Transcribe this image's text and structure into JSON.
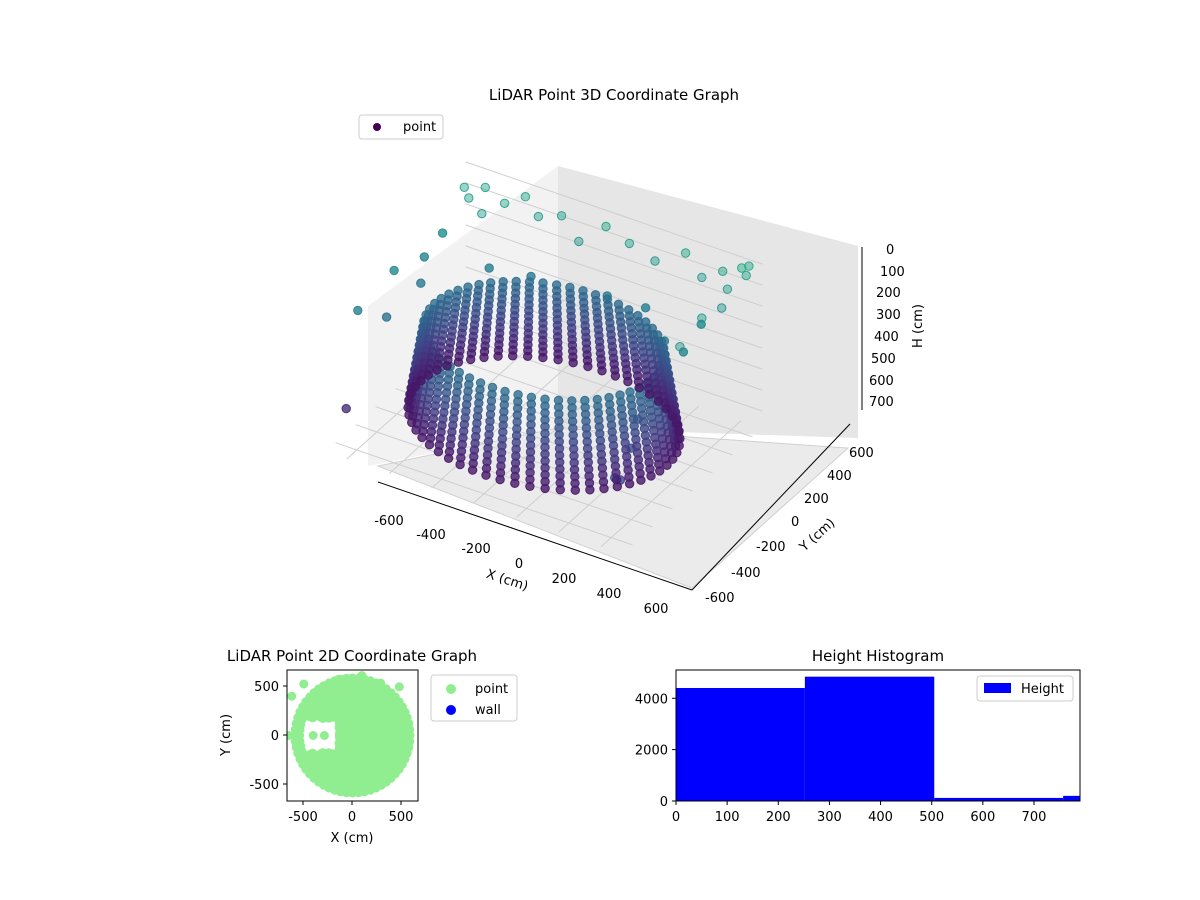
{
  "chart_data": [
    {
      "type": "scatter",
      "projection": "3d",
      "title": "LiDAR Point 3D Coordinate Graph",
      "xlabel": "X (cm)",
      "ylabel": "Y (cm)",
      "zlabel": "H (cm)",
      "xlim": [
        -700,
        700
      ],
      "ylim": [
        -700,
        700
      ],
      "zlim": [
        0,
        780
      ],
      "z_inverted": true,
      "x_ticks": [
        "-600",
        "-400",
        "-200",
        "0",
        "200",
        "400",
        "600"
      ],
      "y_ticks": [
        "-600",
        "-400",
        "-200",
        "0",
        "200",
        "400",
        "600"
      ],
      "z_ticks": [
        "0",
        "100",
        "200",
        "300",
        "400",
        "500",
        "600",
        "700"
      ],
      "legend": [
        "point"
      ],
      "legend_position": "upper-left",
      "grid": true,
      "colormap": "viridis",
      "series": [
        {
          "name": "point",
          "color": "#440154",
          "rings": [
            {
              "z": 700,
              "r": 580,
              "count": 56
            },
            {
              "z": 670,
              "r": 575,
              "count": 56
            },
            {
              "z": 640,
              "r": 570,
              "count": 56
            },
            {
              "z": 610,
              "r": 565,
              "count": 56
            },
            {
              "z": 580,
              "r": 560,
              "count": 56
            },
            {
              "z": 550,
              "r": 555,
              "count": 56
            },
            {
              "z": 520,
              "r": 550,
              "count": 56
            },
            {
              "z": 490,
              "r": 545,
              "count": 56
            },
            {
              "z": 460,
              "r": 540,
              "count": 56
            },
            {
              "z": 430,
              "r": 535,
              "count": 56
            },
            {
              "z": 400,
              "r": 530,
              "count": 56
            },
            {
              "z": 370,
              "r": 525,
              "count": 56
            },
            {
              "z": 340,
              "r": 520,
              "count": 56
            },
            {
              "z": 310,
              "r": 515,
              "count": 56
            }
          ],
          "scattered": [
            {
              "x": -640,
              "y": 560,
              "z": 40
            },
            {
              "x": -600,
              "y": 520,
              "z": 60
            },
            {
              "x": -560,
              "y": 600,
              "z": 30
            },
            {
              "x": -520,
              "y": 480,
              "z": 90
            },
            {
              "x": -450,
              "y": 560,
              "z": 50
            },
            {
              "x": -380,
              "y": 620,
              "z": 20
            },
            {
              "x": -300,
              "y": 580,
              "z": 70
            },
            {
              "x": -200,
              "y": 600,
              "z": 40
            },
            {
              "x": -100,
              "y": 560,
              "z": 110
            },
            {
              "x": 0,
              "y": 620,
              "z": 30
            },
            {
              "x": 120,
              "y": 600,
              "z": 60
            },
            {
              "x": 250,
              "y": 580,
              "z": 90
            },
            {
              "x": 380,
              "y": 610,
              "z": 20
            },
            {
              "x": 480,
              "y": 560,
              "z": 80
            },
            {
              "x": 560,
              "y": 600,
              "z": 40
            },
            {
              "x": 620,
              "y": 520,
              "z": 70
            },
            {
              "x": 640,
              "y": 420,
              "z": 110
            },
            {
              "x": 600,
              "y": 300,
              "z": 150
            },
            {
              "x": 650,
              "y": 200,
              "z": 60
            },
            {
              "x": 620,
              "y": 80,
              "z": 180
            },
            {
              "x": 660,
              "y": -40,
              "z": 90
            },
            {
              "x": 640,
              "y": -150,
              "z": 200
            },
            {
              "x": -620,
              "y": 300,
              "z": 140
            },
            {
              "x": -640,
              "y": 160,
              "z": 200
            },
            {
              "x": -600,
              "y": 40,
              "z": 260
            },
            {
              "x": -660,
              "y": -100,
              "z": 160
            },
            {
              "x": -620,
              "y": -260,
              "z": 300
            },
            {
              "x": -680,
              "y": -420,
              "z": 220
            },
            {
              "x": -400,
              "y": 300,
              "z": 230
            },
            {
              "x": -250,
              "y": 400,
              "z": 260
            },
            {
              "x": 100,
              "y": 420,
              "z": 240
            },
            {
              "x": 300,
              "y": 380,
              "z": 210
            },
            {
              "x": 450,
              "y": 250,
              "z": 260
            },
            {
              "x": 500,
              "y": 100,
              "z": 300
            },
            {
              "x": 560,
              "y": -250,
              "z": 380
            },
            {
              "x": 600,
              "y": -400,
              "z": 440
            },
            {
              "x": 620,
              "y": -550,
              "z": 520
            },
            {
              "x": -650,
              "y": -600,
              "z": 600
            },
            {
              "x": 640,
              "y": -650,
              "z": 460
            },
            {
              "x": 640,
              "y": 620,
              "z": 5
            },
            {
              "x": 680,
              "y": 580,
              "z": 10
            },
            {
              "x": 660,
              "y": 650,
              "z": 2
            }
          ]
        }
      ]
    },
    {
      "type": "scatter",
      "title": "LiDAR Point 2D Coordinate Graph",
      "xlabel": "X (cm)",
      "ylabel": "Y (cm)",
      "xlim": [
        -700,
        700
      ],
      "ylim": [
        -700,
        700
      ],
      "x_ticks": [
        "-500",
        "0",
        "500"
      ],
      "y_ticks": [
        "-500",
        "0",
        "500"
      ],
      "legend": [
        "point",
        "wall"
      ],
      "legend_position": "outside-right",
      "series": [
        {
          "name": "point",
          "color": "#90ee90"
        },
        {
          "name": "wall",
          "color": "#0000ff"
        }
      ]
    },
    {
      "type": "bar",
      "title": "Height Histogram",
      "xlim": [
        0,
        790
      ],
      "ylim": [
        0,
        5100
      ],
      "x_ticks": [
        "0",
        "100",
        "200",
        "300",
        "400",
        "500",
        "600",
        "700"
      ],
      "y_ticks": [
        "0",
        "2000",
        "4000"
      ],
      "legend": [
        "Height"
      ],
      "legend_position": "upper-right",
      "series": [
        {
          "name": "Height",
          "color": "#0000ff",
          "bins": [
            {
              "from": 0,
              "to": 252,
              "count": 4400
            },
            {
              "from": 252,
              "to": 505,
              "count": 4840
            },
            {
              "from": 505,
              "to": 757,
              "count": 120
            },
            {
              "from": 757,
              "to": 790,
              "count": 200
            }
          ]
        }
      ]
    }
  ]
}
